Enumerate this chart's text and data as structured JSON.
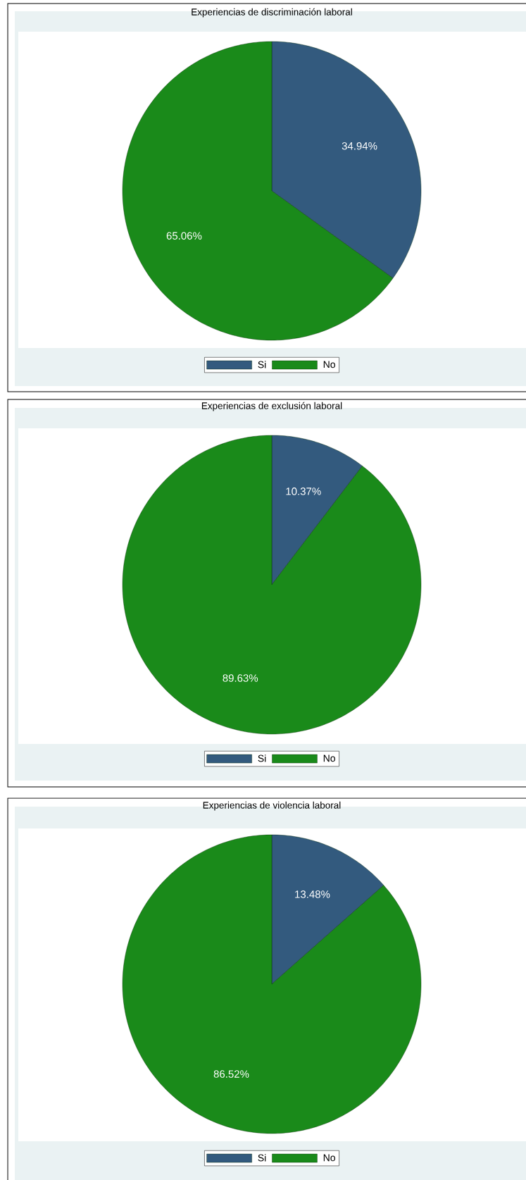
{
  "chart_data": [
    {
      "type": "pie",
      "title": "Experiencias de discriminación laboral",
      "categories": [
        "Si",
        "No"
      ],
      "values": [
        34.94,
        65.06
      ],
      "colors": [
        "#335a7e",
        "#1a8a1a"
      ],
      "value_labels": [
        "34.94%",
        "65.06%"
      ],
      "legend": "bottom"
    },
    {
      "type": "pie",
      "title": "Experiencias de exclusión laboral",
      "categories": [
        "Si",
        "No"
      ],
      "values": [
        10.37,
        89.63
      ],
      "colors": [
        "#335a7e",
        "#1a8a1a"
      ],
      "value_labels": [
        "10.37%",
        "89.63%"
      ],
      "legend": "bottom"
    },
    {
      "type": "pie",
      "title": "Experiencias de violencia laboral",
      "categories": [
        "Si",
        "No"
      ],
      "values": [
        13.48,
        86.52
      ],
      "colors": [
        "#335a7e",
        "#1a8a1a"
      ],
      "value_labels": [
        "13.48%",
        "86.52%"
      ],
      "legend": "bottom"
    }
  ]
}
